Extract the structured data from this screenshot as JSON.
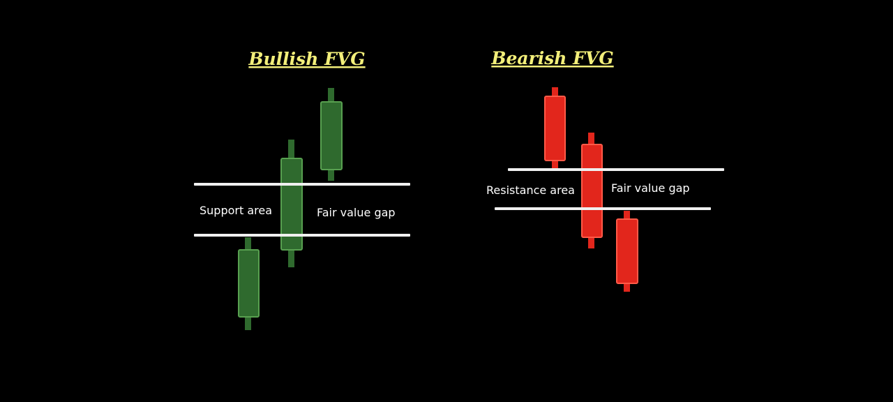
{
  "colors": {
    "background": "#000000",
    "title": "#f3ef7a",
    "label": "#ffffff",
    "line": "#f0f0f0",
    "bullish_body": "#2f6a2e",
    "bullish_border": "#58a050",
    "bearish_body": "#e2261c",
    "bearish_border": "#ff5a48"
  },
  "bullish": {
    "title": "Bullish FVG",
    "support_label": "Support area",
    "gap_label": "Fair value gap"
  },
  "bearish": {
    "title": "Bearish FVG",
    "resistance_label": "Resistance area",
    "gap_label": "Fair value gap"
  }
}
